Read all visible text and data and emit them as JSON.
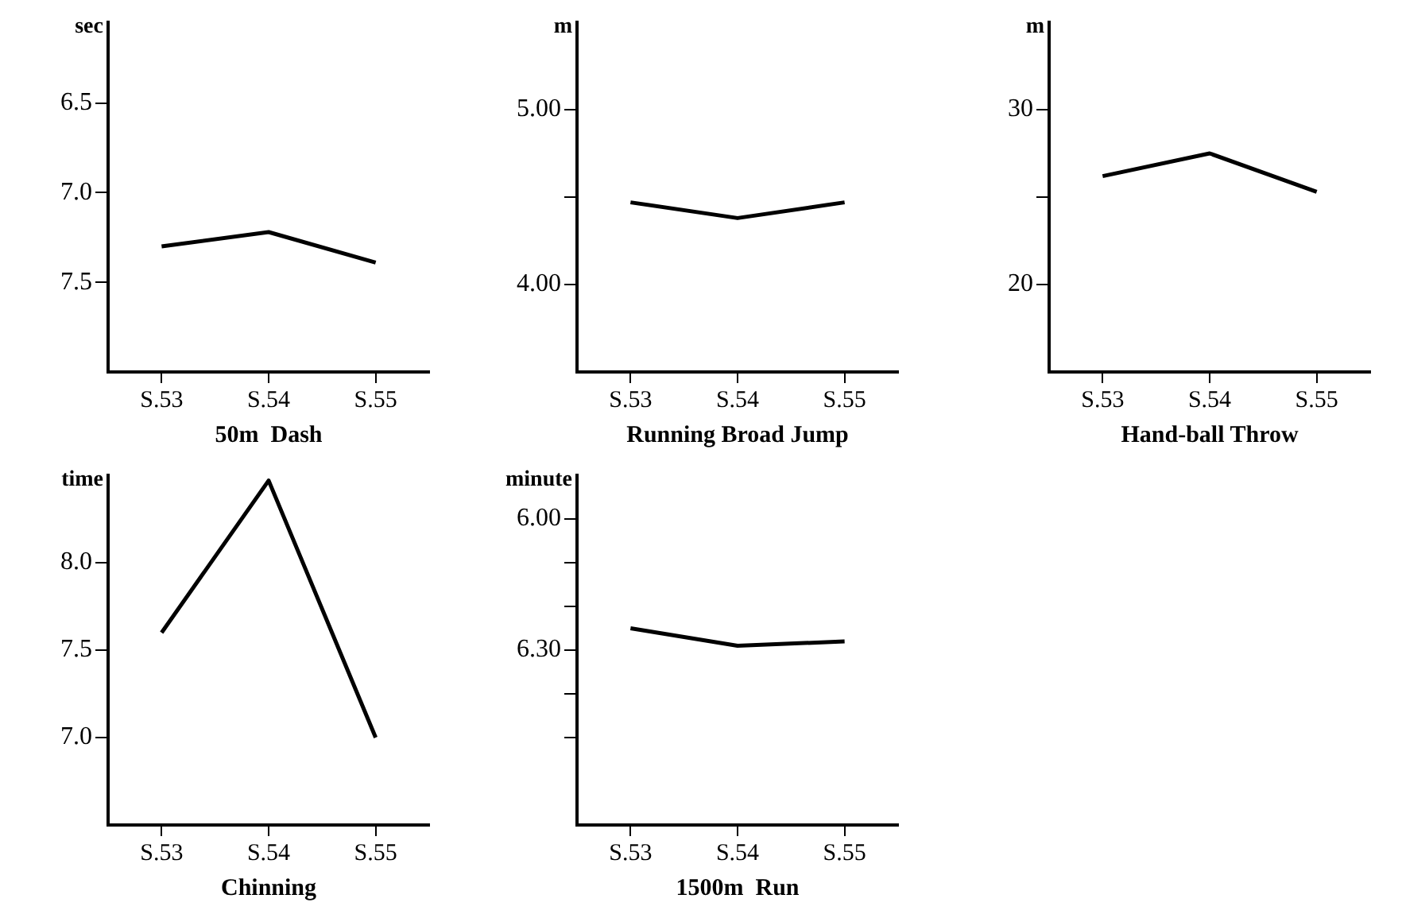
{
  "chart_data": [
    {
      "type": "line",
      "xlabel": "50m  Dash",
      "ylabel": "sec",
      "categories": [
        "S.53",
        "S.54",
        "S.55"
      ],
      "values": [
        7.3,
        7.22,
        7.39
      ],
      "color": "#000000",
      "marker": "none",
      "line_style": "solid",
      "ylim": [
        8.0,
        6.05
      ],
      "yticks": [
        6.5,
        {
          "value": 7.0,
          "label": "7.0"
        },
        7.5
      ]
    },
    {
      "type": "line",
      "xlabel": "Running Broad Jump",
      "ylabel": "m",
      "categories": [
        "S.53",
        "S.54",
        "S.55"
      ],
      "values": [
        4.47,
        4.38,
        4.47
      ],
      "color": "#000000",
      "marker": "none",
      "line_style": "solid",
      "ylim": [
        3.5,
        5.5
      ],
      "yticks": [
        {
          "value": 4.0,
          "label": "4.00"
        },
        {
          "value": 4.5,
          "label": null
        },
        {
          "value": 5.0,
          "label": "5.00"
        }
      ]
    },
    {
      "type": "line",
      "xlabel": "Hand-ball Throw",
      "ylabel": "m",
      "categories": [
        "S.53",
        "S.54",
        "S.55"
      ],
      "values": [
        26.2,
        27.5,
        25.3
      ],
      "color": "#000000",
      "marker": "none",
      "line_style": "solid",
      "ylim": [
        15,
        35
      ],
      "yticks": [
        20,
        {
          "value": 25,
          "label": null
        },
        30
      ]
    },
    {
      "type": "line",
      "xlabel": "Chinning",
      "ylabel": "time",
      "categories": [
        "S.53",
        "S.54",
        "S.55"
      ],
      "values": [
        7.6,
        8.47,
        7.0
      ],
      "color": "#000000",
      "marker": "none",
      "line_style": "solid",
      "ylim": [
        6.5,
        8.5
      ],
      "yticks": [
        {
          "value": 7.0,
          "label": "7.0"
        },
        7.5,
        {
          "value": 8.0,
          "label": "8.0"
        }
      ]
    },
    {
      "type": "line",
      "xlabel": "1500m  Run",
      "ylabel": "minute",
      "categories": [
        "S.53",
        "S.54",
        "S.55"
      ],
      "values": [
        6.25,
        6.29,
        6.28
      ],
      "color": "#000000",
      "marker": "none",
      "line_style": "solid",
      "ylim": [
        6.7,
        5.9
      ],
      "yticks": [
        {
          "value": 6.0,
          "label": "6.00"
        },
        {
          "value": 6.1,
          "label": null
        },
        {
          "value": 6.2,
          "label": null
        },
        {
          "value": 6.3,
          "label": "6.30"
        },
        {
          "value": 6.4,
          "label": null
        },
        {
          "value": 6.5,
          "label": null
        }
      ]
    }
  ]
}
